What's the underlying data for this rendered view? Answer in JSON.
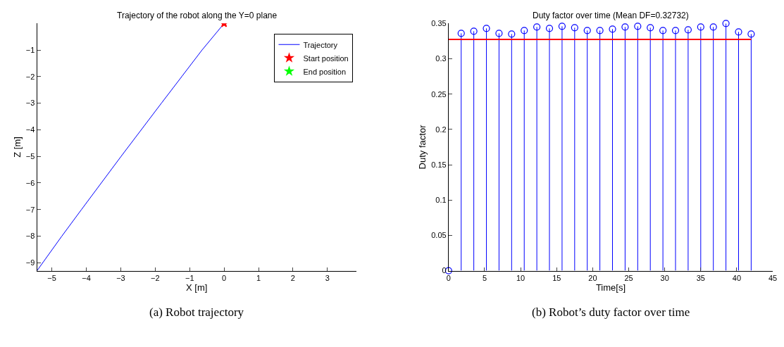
{
  "chart_data": [
    {
      "type": "line",
      "title": "Trajectory of the robot along the Y=0 plane",
      "xlabel": "X [m]",
      "ylabel": "Z [m]",
      "series": [
        {
          "name": "Trajectory",
          "color": "#0000ff",
          "x": [
            -5.43,
            -4.71,
            -4.14,
            -2.99,
            -1.82,
            -1.23,
            -0.64,
            0
          ],
          "values": [
            -9.3,
            -8,
            -7,
            -5,
            -3,
            -2,
            -1,
            0
          ]
        },
        {
          "name": "Start position",
          "type": "scatter",
          "marker": "star",
          "color": "#ff0000",
          "x": [
            0
          ],
          "values": [
            0
          ]
        },
        {
          "name": "End position",
          "type": "scatter",
          "marker": "star",
          "color": "#00ff00",
          "x": [
            null
          ],
          "values": [
            null
          ]
        }
      ],
      "xlim": [
        -5.43,
        3.84
      ],
      "ylim": [
        -9.3,
        0
      ],
      "xticks": [
        -5,
        -4,
        -3,
        -2,
        -1,
        0,
        1,
        2,
        3
      ],
      "yticks": [
        -9,
        -8,
        -7,
        -6,
        -5,
        -4,
        -3,
        -2,
        -1
      ],
      "legend": "top right",
      "annotations": [
        "(a) Robot trajectory"
      ]
    },
    {
      "type": "lollipop",
      "title": "Duty factor over time (Mean DF=0.32732)",
      "xlabel": "Time[s]",
      "ylabel": "Duty factor",
      "x": [
        0,
        1.75,
        3.5,
        5.25,
        7,
        8.75,
        10.5,
        12.25,
        14,
        15.75,
        17.5,
        19.25,
        21,
        22.75,
        24.5,
        26.25,
        28,
        29.75,
        31.5,
        33.25,
        35,
        36.75,
        38.5,
        40.25,
        42
      ],
      "series": [
        {
          "color": "#0000ff",
          "values": [
            0,
            0.336,
            0.339,
            0.343,
            0.336,
            0.335,
            0.34,
            0.345,
            0.343,
            0.346,
            0.344,
            0.34,
            0.34,
            0.342,
            0.345,
            0.346,
            0.344,
            0.34,
            0.34,
            0.341,
            0.345,
            0.345,
            0.35,
            0.338,
            0.335
          ]
        }
      ],
      "marker": "circle",
      "ref_lines": [
        {
          "axis": "y",
          "value": 0.32732,
          "color": "#ff0000"
        }
      ],
      "xlim": [
        0,
        45
      ],
      "ylim": [
        0,
        0.35
      ],
      "xticks": [
        0,
        5,
        10,
        15,
        20,
        25,
        30,
        35,
        40,
        45
      ],
      "yticks": [
        0,
        0.05,
        0.1,
        0.15,
        0.2,
        0.25,
        0.3,
        0.35
      ],
      "legend": false,
      "annotations": [
        "(b) Robot’s duty factor over time"
      ]
    }
  ]
}
